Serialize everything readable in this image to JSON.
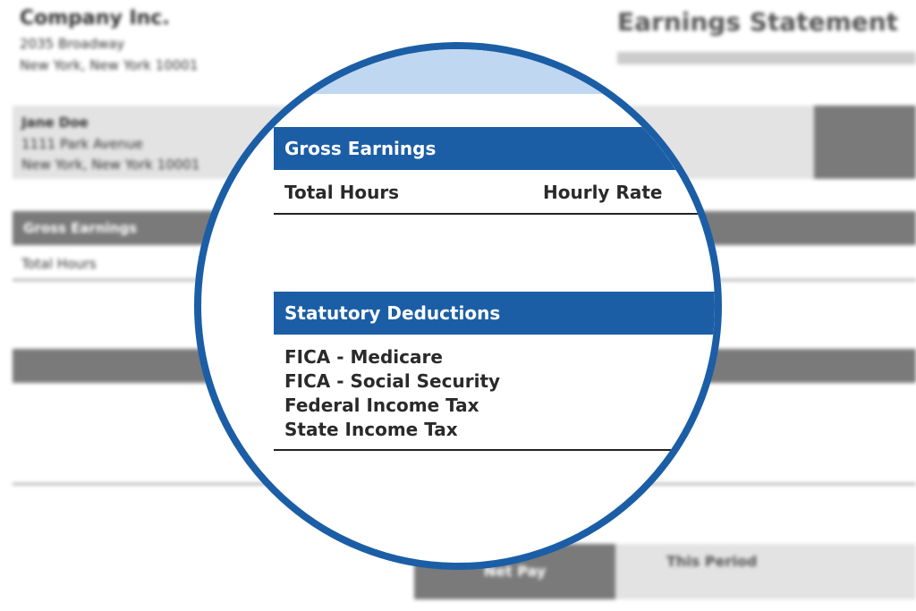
{
  "document": {
    "company": {
      "name": "Company Inc.",
      "address1": "2035 Broadway",
      "address2": "New York, New York 10001"
    },
    "statement_title": "Earnings Statement",
    "employee": {
      "name": "Jane Doe",
      "address1": "1111 Park Avenue",
      "address2": "New York, New York 10001"
    },
    "background": {
      "gross_earnings": "Gross Earnings",
      "total_hours": "Total Hours",
      "net_pay": "Net Pay",
      "this_period": "This Period"
    },
    "magnified": {
      "gross_earnings": {
        "header": "Gross Earnings",
        "columns": [
          "Total Hours",
          "Hourly Rate"
        ]
      },
      "statutory_deductions": {
        "header": "Statutory Deductions",
        "items": [
          "FICA - Medicare",
          "FICA - Social Security",
          "Federal Income Tax",
          "State Income Tax"
        ]
      }
    }
  }
}
